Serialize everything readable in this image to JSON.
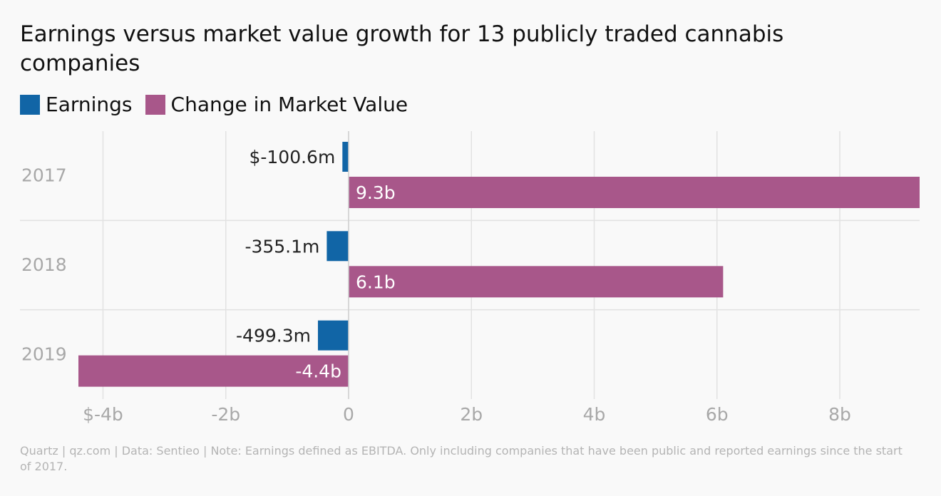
{
  "title": "Earnings versus market value growth for 13 publicly traded cannabis companies",
  "legend": [
    {
      "label": "Earnings",
      "color": "#1165a6"
    },
    {
      "label": "Change in Market Value",
      "color": "#a8578a"
    }
  ],
  "footer": "Quartz | qz.com | Data: Sentieo | Note: Earnings defined as EBITDA. Only including companies that have been public and reported earnings since the start of 2017.",
  "chart_data": {
    "type": "bar",
    "orientation": "horizontal",
    "categories": [
      "2017",
      "2018",
      "2019"
    ],
    "series": [
      {
        "name": "Earnings",
        "values": [
          -0.1006,
          -0.3551,
          -0.4993
        ],
        "labels": [
          "$-100.6m",
          "-355.1m",
          "-499.3m"
        ],
        "color": "#1165a6"
      },
      {
        "name": "Change in Market Value",
        "values": [
          9.3,
          6.1,
          -4.4
        ],
        "labels": [
          "9.3b",
          "6.1b",
          "-4.4b"
        ],
        "color": "#a8578a"
      }
    ],
    "xlim": [
      -4.4,
      9.3
    ],
    "xticks": [
      -4,
      -2,
      0,
      2,
      4,
      6,
      8
    ],
    "xtick_labels": [
      "$-4b",
      "-2b",
      "0",
      "2b",
      "4b",
      "6b",
      "8b"
    ],
    "grid": true,
    "legend_position": "top-left"
  }
}
